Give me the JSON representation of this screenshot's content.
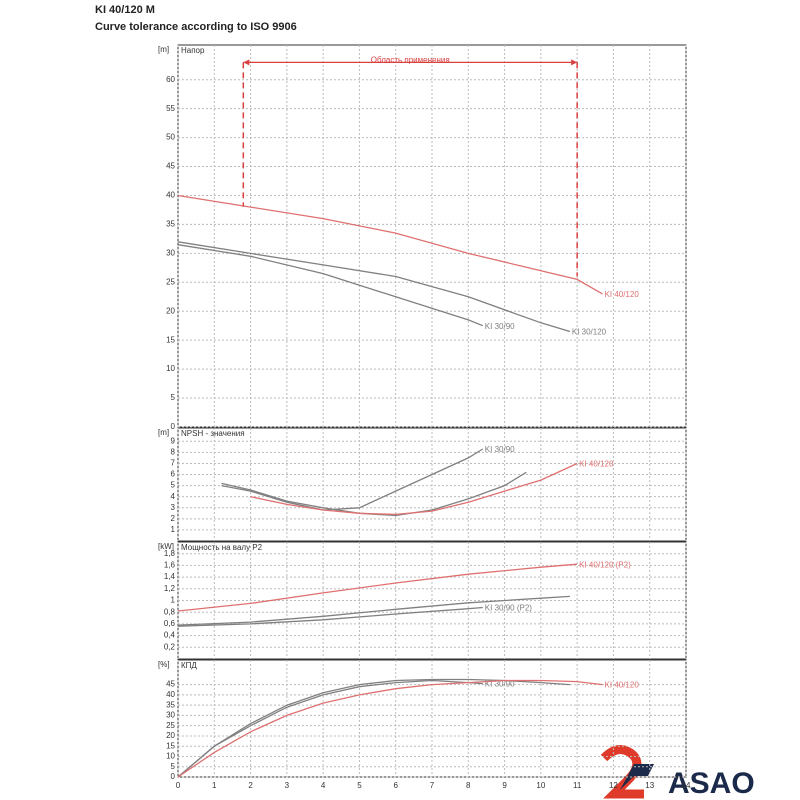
{
  "header": {
    "title": "KI 40/120 M",
    "subtitle": "Curve tolerance according to ISO 9906"
  },
  "logo": {
    "text": "ASAO"
  },
  "chart_data": [
    {
      "type": "line",
      "unit": "[m]",
      "title": "Напор",
      "xlim": [
        0,
        14
      ],
      "xticks": [
        0,
        1,
        2,
        3,
        4,
        5,
        6,
        7,
        8,
        9,
        10,
        11,
        12,
        13,
        14
      ],
      "ylim": [
        0,
        66
      ],
      "yticks": [
        0,
        5,
        10,
        15,
        20,
        25,
        30,
        35,
        40,
        45,
        50,
        55,
        60
      ],
      "grid": true,
      "annotation": {
        "text": "Область применения",
        "x": [
          1.8,
          11
        ],
        "y": 63,
        "y_bottom": [
          38,
          26
        ],
        "color": "#d94040"
      },
      "series": [
        {
          "name": "KI 40/120",
          "color": "#e07070",
          "x": [
            0,
            2,
            4,
            6,
            8,
            10,
            11,
            11.7
          ],
          "values": [
            40,
            38,
            36,
            33.5,
            30,
            27,
            25.5,
            23
          ]
        },
        {
          "name": "KI 30/90",
          "color": "#808080",
          "x": [
            0,
            2,
            4,
            6,
            8,
            8.4
          ],
          "values": [
            31.5,
            29.5,
            26.5,
            22.5,
            18.5,
            17.5
          ]
        },
        {
          "name": "KI 30/120",
          "color": "#808080",
          "x": [
            0,
            2,
            4,
            6,
            8,
            10,
            10.8
          ],
          "values": [
            32,
            30,
            28,
            26,
            22.5,
            18,
            16.5
          ]
        }
      ]
    },
    {
      "type": "line",
      "unit": "[m]",
      "title": "NPSH - значения",
      "xlim": [
        0,
        14
      ],
      "xticks": [
        0,
        1,
        2,
        3,
        4,
        5,
        6,
        7,
        8,
        9,
        10,
        11,
        12,
        13,
        14
      ],
      "ylim": [
        0,
        10.2
      ],
      "yticks": [
        1,
        2,
        3,
        4,
        5,
        6,
        7,
        8,
        9
      ],
      "grid": true,
      "series": [
        {
          "name": "KI 30/90",
          "color": "#808080",
          "x": [
            1.2,
            2,
            3,
            4,
            5,
            6,
            7,
            8,
            8.4
          ],
          "values": [
            5,
            4.5,
            3.5,
            2.8,
            3,
            4.5,
            6,
            7.5,
            8.3
          ]
        },
        {
          "color": "#808080",
          "x": [
            1.2,
            2,
            3,
            4,
            5,
            6,
            7,
            8,
            9,
            9.6
          ],
          "values": [
            5.2,
            4.6,
            3.6,
            3,
            2.5,
            2.3,
            2.8,
            3.8,
            5,
            6.2
          ]
        },
        {
          "name": "KI 40/120",
          "color": "#e07070",
          "x": [
            2,
            3,
            4,
            5,
            6,
            7,
            8,
            9,
            10,
            11
          ],
          "values": [
            4,
            3.3,
            2.8,
            2.5,
            2.4,
            2.7,
            3.5,
            4.5,
            5.5,
            7
          ]
        }
      ]
    },
    {
      "type": "line",
      "unit": "[kW]",
      "title": "Мощность на валу P2",
      "xlim": [
        0,
        14
      ],
      "xticks": [
        0,
        1,
        2,
        3,
        4,
        5,
        6,
        7,
        8,
        9,
        10,
        11,
        12,
        13,
        14
      ],
      "ylim": [
        0,
        2
      ],
      "yticks": [
        {
          "value": 0.2,
          "label": "0,2"
        },
        {
          "value": 0.4,
          "label": "0,4"
        },
        {
          "value": 0.6,
          "label": "0,6"
        },
        {
          "value": 0.8,
          "label": "0,8"
        },
        1,
        {
          "value": 1.2,
          "label": "1,2"
        },
        {
          "value": 1.4,
          "label": "1,4"
        },
        {
          "value": 1.6,
          "label": "1,6"
        },
        {
          "value": 1.8,
          "label": "1,8"
        }
      ],
      "grid": true,
      "series": [
        {
          "name": "KI 40/120 (P2)",
          "color": "#e07070",
          "x": [
            0,
            2,
            4,
            6,
            8,
            10,
            11
          ],
          "values": [
            0.82,
            0.95,
            1.13,
            1.3,
            1.45,
            1.57,
            1.62
          ]
        },
        {
          "name": "KI 30/90 (P2)",
          "color": "#808080",
          "x": [
            0,
            2,
            4,
            6,
            8,
            8.4
          ],
          "values": [
            0.56,
            0.6,
            0.67,
            0.77,
            0.86,
            0.88
          ]
        },
        {
          "color": "#808080",
          "x": [
            0,
            2,
            4,
            6,
            8,
            10,
            10.8
          ],
          "values": [
            0.58,
            0.63,
            0.73,
            0.85,
            0.96,
            1.04,
            1.07
          ]
        }
      ]
    },
    {
      "type": "line",
      "unit": "[%]",
      "title": "КПД",
      "xlim": [
        0,
        14
      ],
      "xticks": [
        0,
        1,
        2,
        3,
        4,
        5,
        6,
        7,
        8,
        9,
        10,
        11,
        12,
        13,
        14
      ],
      "xtick_labels": true,
      "ylim": [
        0,
        57
      ],
      "yticks": [
        0,
        5,
        10,
        15,
        20,
        25,
        30,
        35,
        40,
        45
      ],
      "grid": true,
      "series": [
        {
          "name": "KI 30/90",
          "color": "#808080",
          "x": [
            0,
            1,
            2,
            3,
            4,
            5,
            6,
            7,
            8,
            8.4
          ],
          "values": [
            0,
            15,
            25,
            34,
            40,
            44,
            46,
            47,
            46,
            45.5
          ]
        },
        {
          "color": "#808080",
          "x": [
            0,
            1,
            2,
            3,
            4,
            5,
            6,
            7,
            8,
            9,
            10,
            10.8
          ],
          "values": [
            0,
            15,
            26,
            35,
            41,
            45,
            47,
            47.5,
            47.5,
            47,
            46,
            45
          ]
        },
        {
          "name": "KI 40/120",
          "color": "#e07070",
          "x": [
            0,
            1,
            2,
            3,
            4,
            5,
            6,
            7,
            8,
            9,
            10,
            11,
            11.7
          ],
          "values": [
            0,
            12,
            22,
            30,
            36,
            40,
            43,
            45,
            46,
            47,
            47,
            46.5,
            45
          ]
        }
      ]
    }
  ]
}
